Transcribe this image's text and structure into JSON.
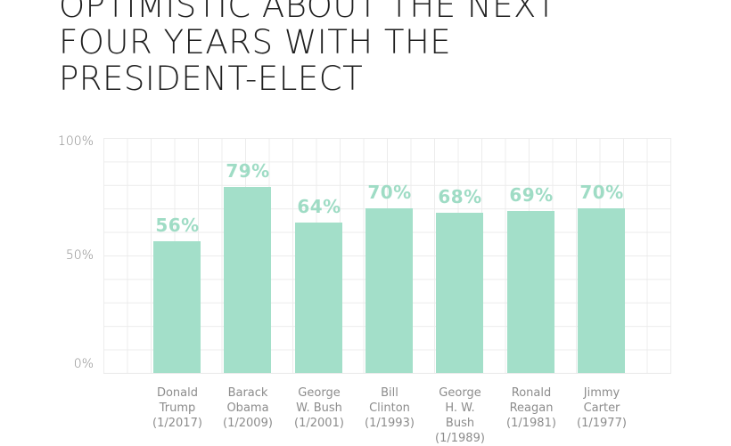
{
  "title_lines": [
    "OPTIMISTIC ABOUT THE NEXT",
    "FOUR YEARS WITH THE",
    "PRESIDENT-ELECT"
  ],
  "y_ticks": [
    "100%",
    "50%",
    "0%"
  ],
  "bars": [
    {
      "label_lines": [
        "Donald",
        "Trump",
        "(1/2017)"
      ],
      "value": 56,
      "value_label": "56%"
    },
    {
      "label_lines": [
        "Barack",
        "Obama",
        "(1/2009)"
      ],
      "value": 79,
      "value_label": "79%"
    },
    {
      "label_lines": [
        "George",
        "W. Bush",
        "(1/2001)"
      ],
      "value": 64,
      "value_label": "64%"
    },
    {
      "label_lines": [
        "Bill",
        "Clinton",
        "(1/1993)"
      ],
      "value": 70,
      "value_label": "70%"
    },
    {
      "label_lines": [
        "George",
        "H. W.",
        "Bush",
        "(1/1989)"
      ],
      "value": 68,
      "value_label": "68%"
    },
    {
      "label_lines": [
        "Ronald",
        "Reagan",
        "(1/1981)"
      ],
      "value": 69,
      "value_label": "69%"
    },
    {
      "label_lines": [
        "Jimmy",
        "Carter",
        "(1/1977)"
      ],
      "value": 70,
      "value_label": "70%"
    }
  ],
  "colors": {
    "bar": "#a3dfc9",
    "value_label": "#9fdcc5"
  },
  "chart_data": {
    "type": "bar",
    "title": "OPTIMISTIC ABOUT THE NEXT FOUR YEARS WITH THE PRESIDENT-ELECT",
    "categories": [
      "Donald Trump (1/2017)",
      "Barack Obama (1/2009)",
      "George W. Bush (1/2001)",
      "Bill Clinton (1/1993)",
      "George H. W. Bush (1/1989)",
      "Ronald Reagan (1/1981)",
      "Jimmy Carter (1/1977)"
    ],
    "values": [
      56,
      79,
      64,
      70,
      68,
      69,
      70
    ],
    "xlabel": "",
    "ylabel": "",
    "ylim": [
      0,
      100
    ],
    "yticks": [
      "0%",
      "50%",
      "100%"
    ],
    "grid": true,
    "data_labels": true
  }
}
